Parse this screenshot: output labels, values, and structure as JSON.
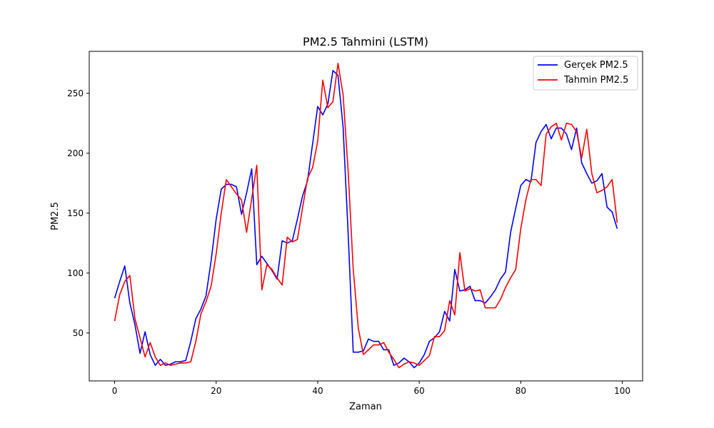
{
  "chart_data": {
    "type": "line",
    "title": "PM2.5 Tahmini (LSTM)",
    "xlabel": "Zaman",
    "ylabel": "PM2.5",
    "xlim": [
      -5,
      104
    ],
    "ylim": [
      10,
      285
    ],
    "xticks": [
      0,
      20,
      40,
      60,
      80,
      100
    ],
    "yticks": [
      50,
      100,
      150,
      200,
      250
    ],
    "grid": false,
    "legend_position": "top-right",
    "series": [
      {
        "name": "Gerçek PM2.5",
        "color": "#0000ff",
        "x": [
          0,
          1,
          2,
          3,
          4,
          5,
          6,
          7,
          8,
          9,
          10,
          11,
          12,
          13,
          14,
          15,
          16,
          17,
          18,
          19,
          20,
          21,
          22,
          23,
          24,
          25,
          26,
          27,
          28,
          29,
          30,
          31,
          32,
          33,
          34,
          35,
          36,
          37,
          38,
          39,
          40,
          41,
          42,
          43,
          44,
          45,
          46,
          47,
          48,
          49,
          50,
          51,
          52,
          53,
          54,
          55,
          56,
          57,
          58,
          59,
          60,
          61,
          62,
          63,
          64,
          65,
          66,
          67,
          68,
          69,
          70,
          71,
          72,
          73,
          74,
          75,
          76,
          77,
          78,
          79,
          80,
          81,
          82,
          83,
          84,
          85,
          86,
          87,
          88,
          89,
          90,
          91,
          92,
          93,
          94,
          95,
          96,
          97,
          98,
          99
        ],
        "values": [
          79,
          93,
          106,
          75,
          57,
          33,
          51,
          32,
          23,
          28,
          23,
          24,
          26,
          26,
          27,
          43,
          62,
          70,
          81,
          110,
          145,
          170,
          174,
          174,
          172,
          149,
          167,
          187,
          107,
          114,
          108,
          102,
          95,
          127,
          125,
          127,
          145,
          164,
          177,
          208,
          239,
          232,
          241,
          269,
          265,
          222,
          133,
          34,
          34,
          35,
          45,
          43,
          43,
          36,
          36,
          23,
          25,
          29,
          26,
          21,
          25,
          32,
          43,
          46,
          51,
          68,
          60,
          103,
          85,
          86,
          89,
          77,
          77,
          75,
          80,
          86,
          95,
          101,
          134,
          154,
          173,
          178,
          176,
          209,
          218,
          224,
          212,
          221,
          221,
          216,
          203,
          221,
          192,
          183,
          175,
          177,
          183,
          155,
          151,
          137
        ]
      },
      {
        "name": "Tahmin PM2.5",
        "color": "#ff0000",
        "x": [
          0,
          1,
          2,
          3,
          4,
          5,
          6,
          7,
          8,
          9,
          10,
          11,
          12,
          13,
          14,
          15,
          16,
          17,
          18,
          19,
          20,
          21,
          22,
          23,
          24,
          25,
          26,
          27,
          28,
          29,
          30,
          31,
          32,
          33,
          34,
          35,
          36,
          37,
          38,
          39,
          40,
          41,
          42,
          43,
          44,
          45,
          46,
          47,
          48,
          49,
          50,
          51,
          52,
          53,
          54,
          55,
          56,
          57,
          58,
          59,
          60,
          61,
          62,
          63,
          64,
          65,
          66,
          67,
          68,
          69,
          70,
          71,
          72,
          73,
          74,
          75,
          76,
          77,
          78,
          79,
          80,
          81,
          82,
          83,
          84,
          85,
          86,
          87,
          88,
          89,
          90,
          91,
          92,
          93,
          94,
          95,
          96,
          97,
          98,
          99
        ],
        "values": [
          60,
          82,
          93,
          98,
          62,
          46,
          30,
          42,
          30,
          23,
          25,
          23,
          24,
          25,
          25,
          26,
          43,
          66,
          76,
          89,
          116,
          150,
          178,
          172,
          166,
          161,
          134,
          162,
          190,
          86,
          107,
          103,
          96,
          90,
          130,
          126,
          128,
          154,
          179,
          188,
          210,
          261,
          238,
          243,
          275,
          249,
          185,
          103,
          54,
          32,
          36,
          40,
          40,
          42,
          34,
          28,
          21,
          24,
          26,
          25,
          23,
          27,
          31,
          47,
          47,
          52,
          77,
          65,
          117,
          85,
          87,
          85,
          86,
          71,
          71,
          71,
          78,
          88,
          96,
          103,
          137,
          161,
          178,
          178,
          173,
          216,
          222,
          225,
          211,
          225,
          224,
          218,
          196,
          220,
          183,
          167,
          169,
          172,
          178,
          142
        ]
      }
    ]
  }
}
